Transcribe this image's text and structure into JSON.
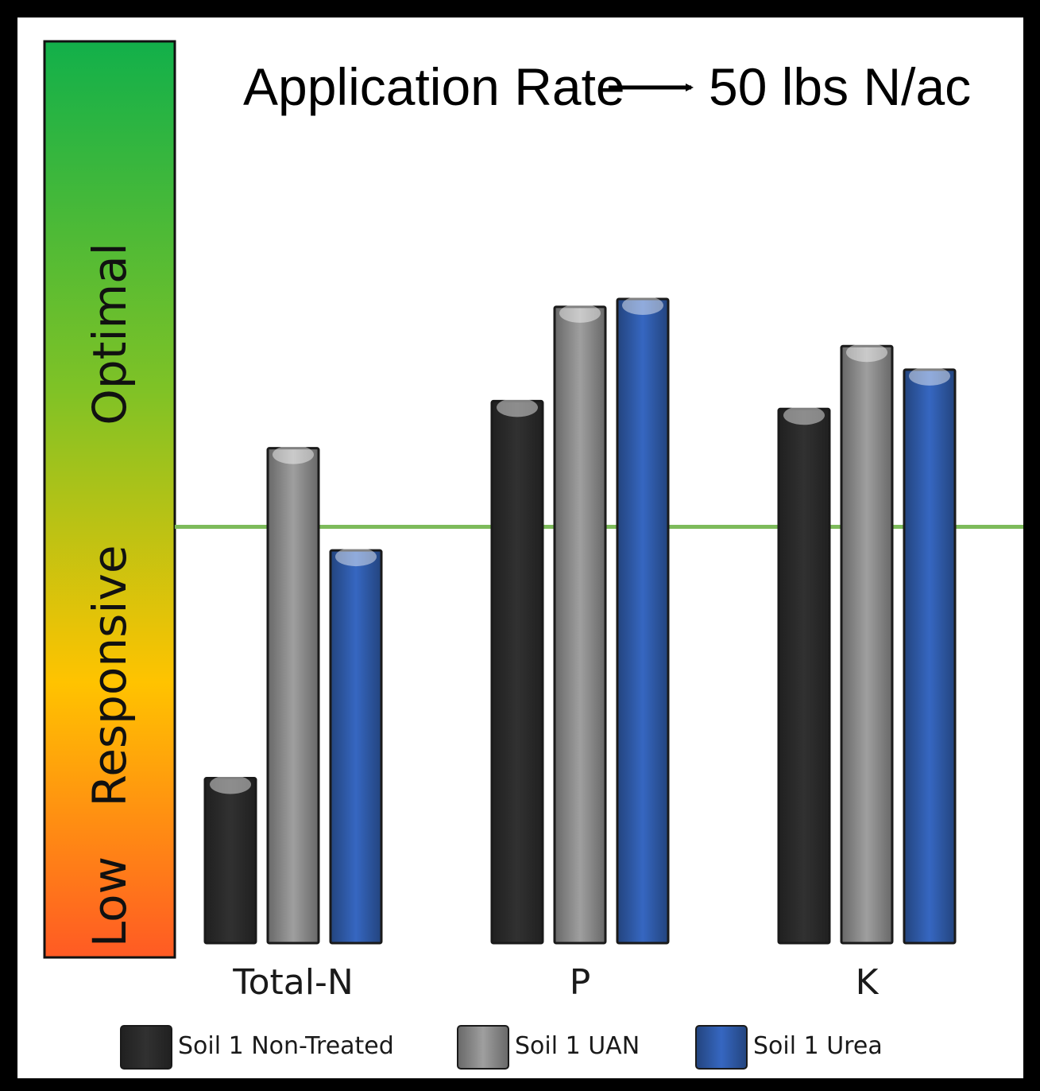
{
  "chart_data": {
    "type": "bar",
    "title": "Application Rate",
    "title_value": "50 lbs N/ac",
    "categories": [
      "Total-N",
      "P",
      "K"
    ],
    "series": [
      {
        "name": "Soil 1 Non-Treated",
        "color": "#2b2b2b",
        "values": [
          21,
          69,
          68
        ]
      },
      {
        "name": "Soil 1 UAN",
        "color": "#8a8a8a",
        "values": [
          63,
          81,
          76
        ]
      },
      {
        "name": "Soil 1 Urea",
        "color": "#2f5aa8",
        "values": [
          50,
          82,
          73
        ]
      }
    ],
    "ylim": [
      0,
      100
    ],
    "threshold": {
      "value": 53,
      "color": "#7dbb5b"
    },
    "bands": [
      "Low",
      "Responsive",
      "Optimal"
    ],
    "gradient_colors": [
      "#ff5a24",
      "#ffc300",
      "#7fc226",
      "#12b04a"
    ],
    "legend_position": "bottom",
    "grid": false
  }
}
